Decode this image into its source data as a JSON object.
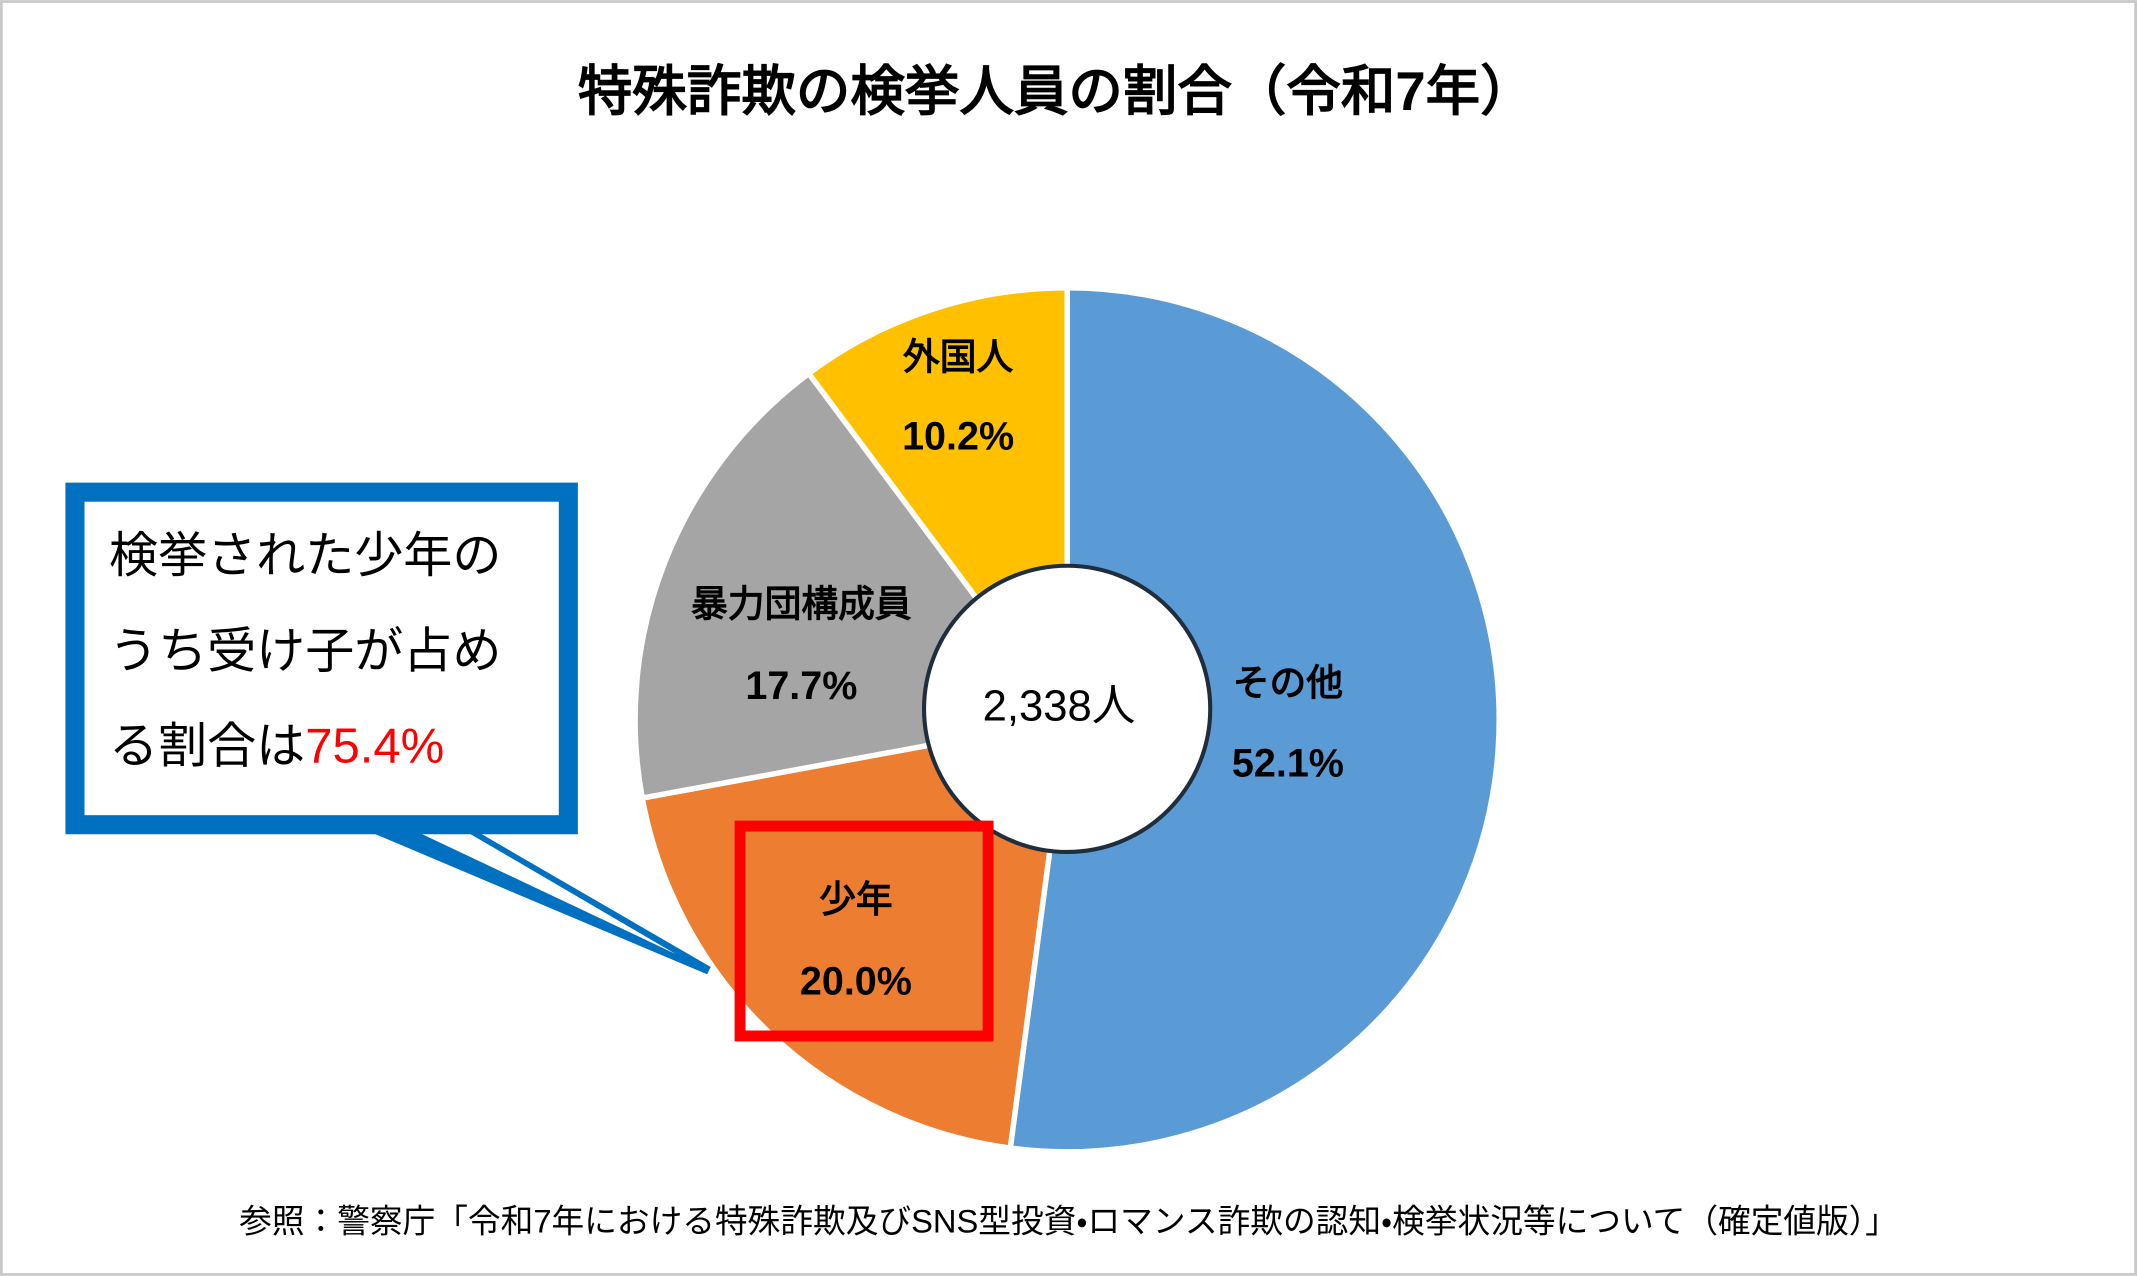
{
  "chart_data": {
    "type": "donut",
    "title": "特殊詐欺の検挙人員の割合（令和7年）",
    "categories": [
      "その他",
      "少年",
      "暴力団構成員",
      "外国人"
    ],
    "values": [
      52.1,
      20.0,
      17.7,
      10.2
    ],
    "value_labels": [
      "52.1%",
      "20.0%",
      "17.7%",
      "10.2%"
    ],
    "colors": [
      "#5b9bd5",
      "#ed7d31",
      "#a5a5a5",
      "#ffc000"
    ],
    "center_label": "2,338人",
    "callout": {
      "lines": [
        "検挙された少年の",
        "うち受け子が占め",
        "る割合は"
      ],
      "highlight": "75.4%"
    },
    "source": "参照：警察庁「令和7年における特殊詐欺及びSNS型投資・ロマンス詐欺の認知・検挙状況等について（確定値版）」"
  }
}
